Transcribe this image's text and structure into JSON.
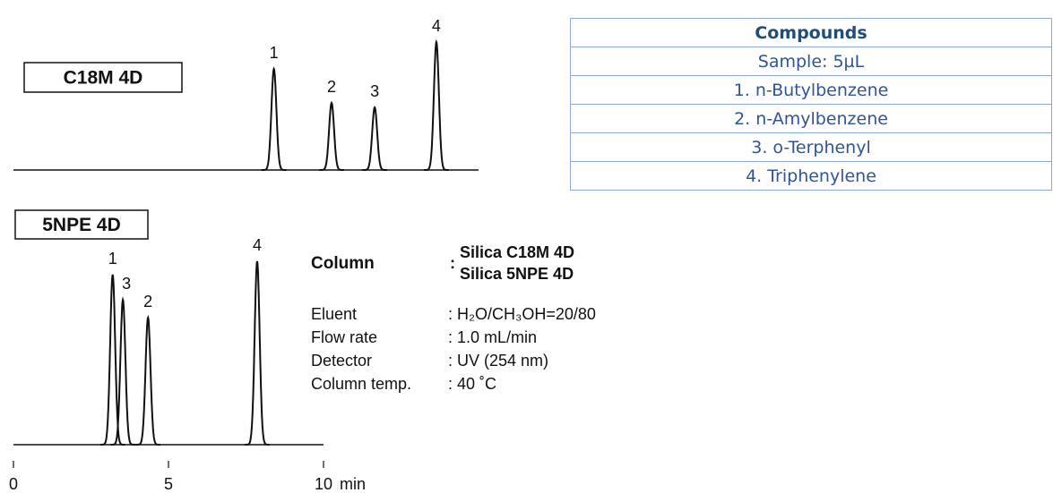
{
  "chart_data": [
    {
      "type": "chromatogram",
      "title": "C18M 4D",
      "xlim": [
        0,
        15
      ],
      "ylim": [
        0,
        150
      ],
      "peaks": [
        {
          "label": "1",
          "time": 8.4,
          "height": 113
        },
        {
          "label": "2",
          "time": 10.26,
          "height": 75
        },
        {
          "label": "3",
          "time": 11.65,
          "height": 70
        },
        {
          "label": "4",
          "time": 13.64,
          "height": 143
        }
      ],
      "color": "#111111"
    },
    {
      "type": "chromatogram",
      "title": "5NPE 4D",
      "xlim": [
        0,
        10
      ],
      "ylim": [
        0,
        210
      ],
      "xticks": [
        0,
        5,
        10
      ],
      "xlabel": "min",
      "peaks": [
        {
          "label": "1",
          "time": 3.2,
          "height": 190
        },
        {
          "label": "3",
          "time": 3.53,
          "height": 162
        },
        {
          "label": "2",
          "time": 4.34,
          "height": 142
        },
        {
          "label": "4",
          "time": 7.86,
          "height": 205
        }
      ],
      "color": "#111111"
    }
  ],
  "table": {
    "header": "Compounds",
    "rows": [
      "Sample: 5µL",
      "1. n-Butylbenzene",
      "2. n-Amylbenzene",
      "3. o-Terphenyl",
      "4. Triphenylene"
    ]
  },
  "conditions": {
    "column": {
      "label": "Column",
      "colon": ":",
      "values": [
        "Silica C18M 4D",
        "Silica 5NPE 4D"
      ]
    },
    "rows": [
      {
        "label": "Eluent",
        "value": ": H₂O/CH₃OH=20/80"
      },
      {
        "label": "Flow rate",
        "value": ": 1.0 mL/min"
      },
      {
        "label": "Detector",
        "value": ": UV (254 nm)"
      },
      {
        "label": "Column temp.",
        "value": ": 40 ˚C"
      }
    ]
  }
}
